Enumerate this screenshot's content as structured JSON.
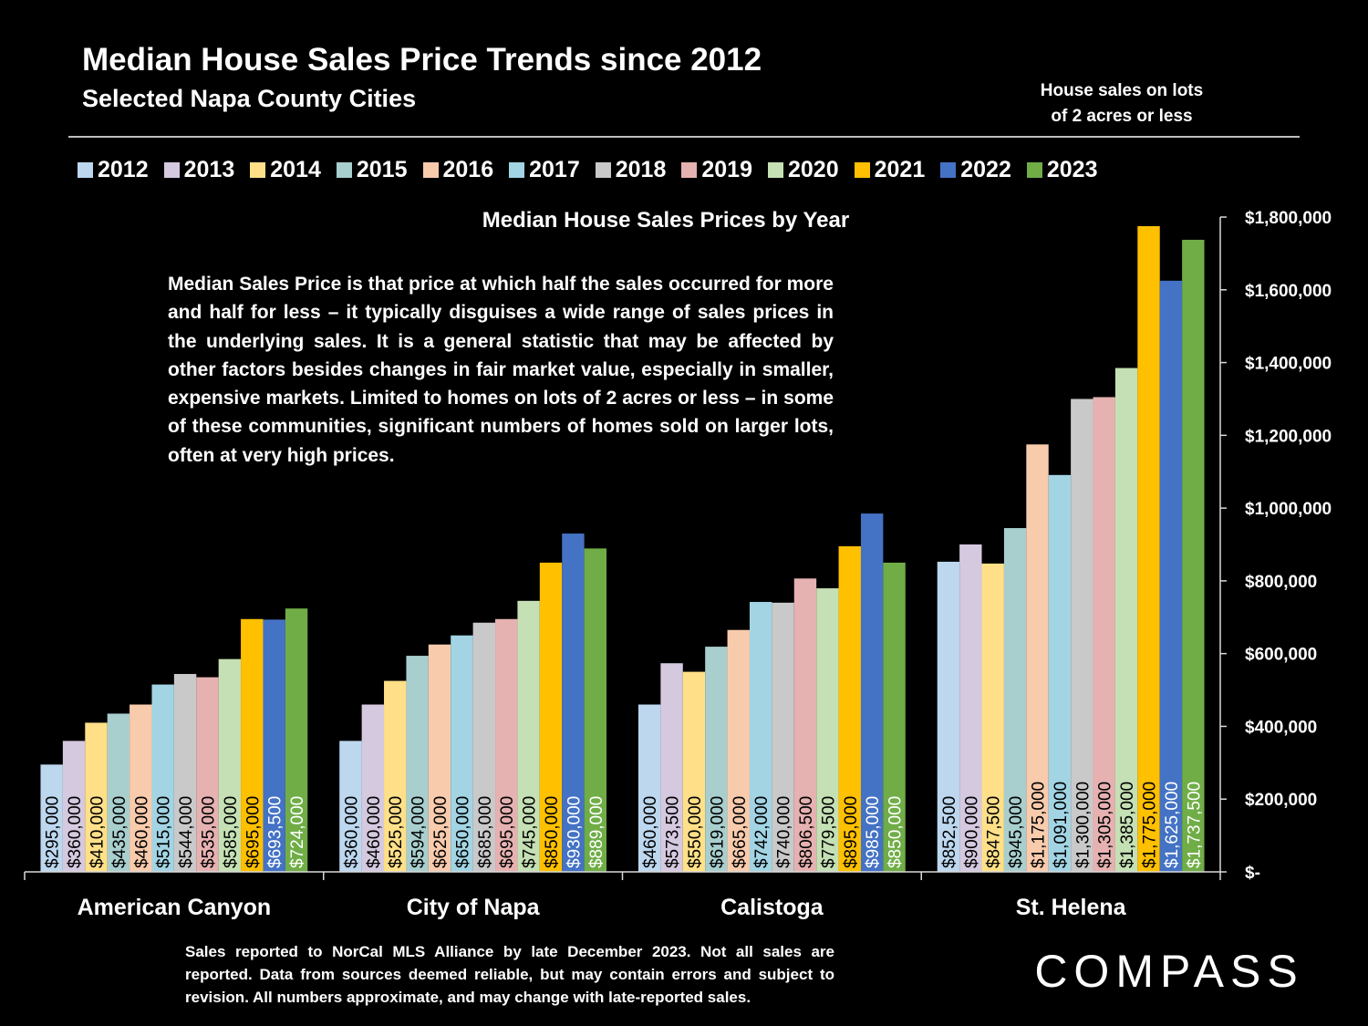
{
  "header": {
    "title": "Median House Sales Price Trends since 2012",
    "subtitle": "Selected Napa County Cities",
    "note_line1": "House sales on lots",
    "note_line2": "of 2 acres or less"
  },
  "description": "Median Sales Price is that price at which half the sales occurred for more and half for less – it typically disguises a wide range of sales prices in the underlying sales. It is a general statistic that may be affected by other factors besides changes in fair market value, especially in smaller, expensive markets. Limited to homes on lots of 2 acres or less – in some of these communities, significant numbers of homes sold on larger lots, often at very high prices.",
  "footer": "Sales reported to NorCal MLS Alliance by late December 2023. Not all sales are reported. Data from sources deemed reliable, but may contain errors and subject to revision.  All numbers approximate, and may change with late-reported sales.",
  "logo": "COMPASS",
  "colors": {
    "background": "#000000",
    "series": [
      "#bdd7ee",
      "#d5c9e0",
      "#ffe088",
      "#a9cece",
      "#f8cbad",
      "#a2d4e4",
      "#c9c9c9",
      "#e6b1b1",
      "#c5e0b4",
      "#ffc000",
      "#4472c4",
      "#70ad47"
    ],
    "label_dark": "#000000",
    "label_light": "#ffffff"
  },
  "chart_data": {
    "type": "bar",
    "title": "Median House Sales Prices by Year",
    "categories": [
      "American Canyon",
      "City of Napa",
      "Calistoga",
      "St. Helena"
    ],
    "ylim": [
      0,
      1800000
    ],
    "yticks": [
      0,
      200000,
      400000,
      600000,
      800000,
      1000000,
      1200000,
      1400000,
      1600000,
      1800000
    ],
    "ytick_labels": [
      "$-",
      "$200,000",
      "$400,000",
      "$600,000",
      "$800,000",
      "$1,000,000",
      "$1,200,000",
      "$1,400,000",
      "$1,600,000",
      "$1,800,000"
    ],
    "yaxis_side": "right",
    "legend_position": "top",
    "series": [
      {
        "name": "2012",
        "values": [
          295000,
          360000,
          460000,
          852500
        ],
        "labels": [
          "$295,000",
          "$360,000",
          "$460,000",
          "$852,500"
        ]
      },
      {
        "name": "2013",
        "values": [
          360000,
          460000,
          573500,
          900000
        ],
        "labels": [
          "$360,000",
          "$460,000",
          "$573,500",
          "$900,000"
        ]
      },
      {
        "name": "2014",
        "values": [
          410000,
          525000,
          550000,
          847500
        ],
        "labels": [
          "$410,000",
          "$525,000",
          "$550,000",
          "$847,500"
        ]
      },
      {
        "name": "2015",
        "values": [
          435000,
          594000,
          619000,
          945000
        ],
        "labels": [
          "$435,000",
          "$594,000",
          "$619,000",
          "$945,000"
        ]
      },
      {
        "name": "2016",
        "values": [
          460000,
          625000,
          665000,
          1175000
        ],
        "labels": [
          "$460,000",
          "$625,000",
          "$665,000",
          "$1,175,000"
        ]
      },
      {
        "name": "2017",
        "values": [
          515000,
          650000,
          742000,
          1091000
        ],
        "labels": [
          "$515,000",
          "$650,000",
          "$742,000",
          "$1,091,000"
        ]
      },
      {
        "name": "2018",
        "values": [
          544000,
          685000,
          740000,
          1300000
        ],
        "labels": [
          "$544,000",
          "$685,000",
          "$740,000",
          "$1,300,000"
        ]
      },
      {
        "name": "2019",
        "values": [
          535000,
          695000,
          806500,
          1305000
        ],
        "labels": [
          "$535,000",
          "$695,000",
          "$806,500",
          "$1,305,000"
        ]
      },
      {
        "name": "2020",
        "values": [
          585000,
          745000,
          779500,
          1385000
        ],
        "labels": [
          "$585,000",
          "$745,000",
          "$779,500",
          "$1,385,000"
        ]
      },
      {
        "name": "2021",
        "values": [
          695000,
          850000,
          895000,
          1775000
        ],
        "labels": [
          "$695,000",
          "$850,000",
          "$895,000",
          "$1,775,000"
        ]
      },
      {
        "name": "2022",
        "values": [
          693500,
          930000,
          985000,
          1625000
        ],
        "labels": [
          "$693,500",
          "$930,000",
          "$985,000",
          "$1,625,000"
        ]
      },
      {
        "name": "2023",
        "values": [
          724000,
          889000,
          850000,
          1737500
        ],
        "labels": [
          "$724,000",
          "$889,000",
          "$850,000",
          "$1,737,500"
        ]
      }
    ]
  }
}
